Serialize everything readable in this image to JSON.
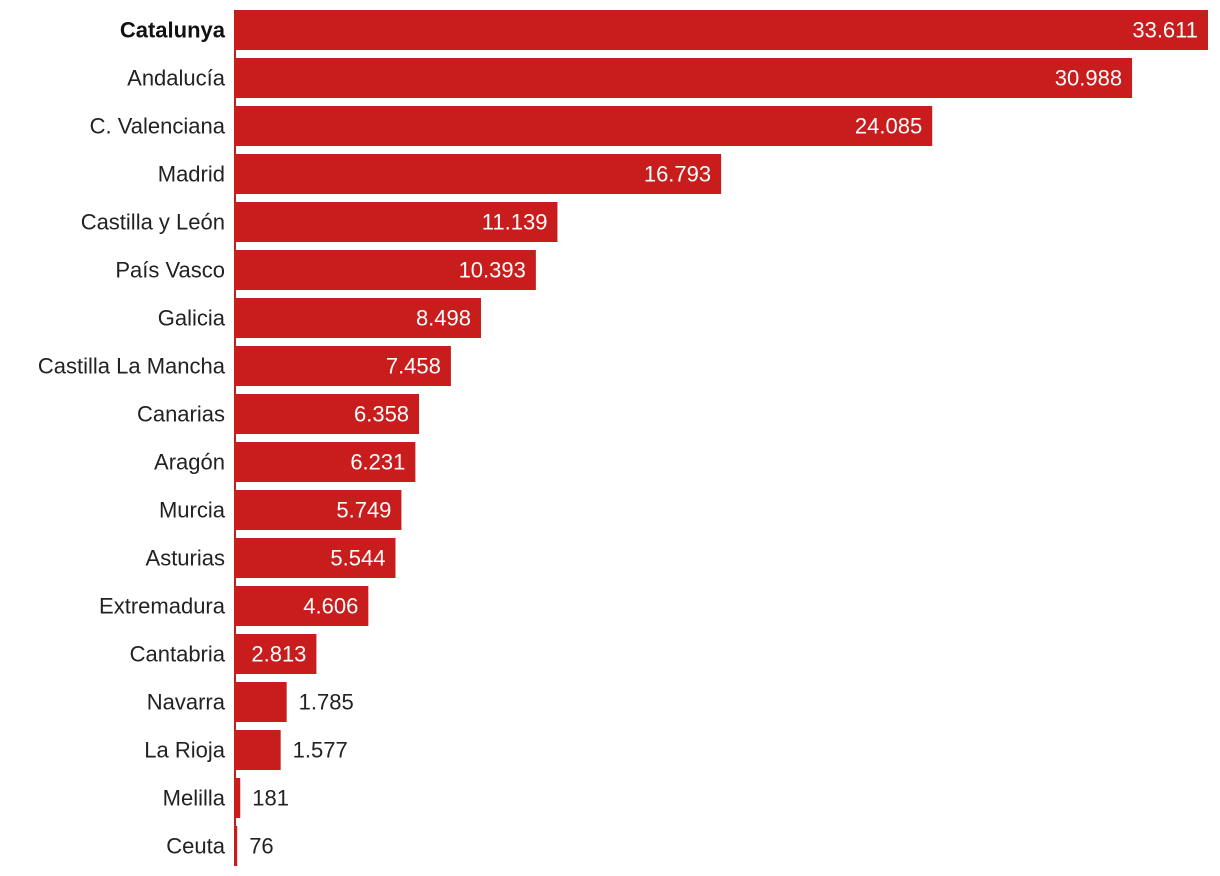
{
  "colors": {
    "bar": "#c91c1c",
    "label_inside": "#ffffff",
    "label_outside": "#222222",
    "axis": "#c91c1c"
  },
  "chart_data": {
    "type": "bar",
    "orientation": "horizontal",
    "highlight_category": "Catalunya",
    "categories": [
      "Catalunya",
      "Andalucía",
      "C. Valenciana",
      "Madrid",
      "Castilla y León",
      "País Vasco",
      "Galicia",
      "Castilla La Mancha",
      "Canarias",
      "Aragón",
      "Murcia",
      "Asturias",
      "Extremadura",
      "Cantabria",
      "Navarra",
      "La Rioja",
      "Melilla",
      "Ceuta"
    ],
    "values": [
      33611,
      30988,
      24085,
      16793,
      11139,
      10393,
      8498,
      7458,
      6358,
      6231,
      5749,
      5544,
      4606,
      2813,
      1785,
      1577,
      181,
      76
    ],
    "value_labels": [
      "33.611",
      "30.988",
      "24.085",
      "16.793",
      "11.139",
      "10.393",
      "8.498",
      "7.458",
      "6.358",
      "6.231",
      "5.749",
      "5.544",
      "4.606",
      "2.813",
      "1.785",
      "1.577",
      "181",
      "76"
    ],
    "xlim": [
      0,
      33611
    ],
    "grid": false,
    "legend": "none",
    "title": "",
    "xlabel": "",
    "ylabel": ""
  }
}
